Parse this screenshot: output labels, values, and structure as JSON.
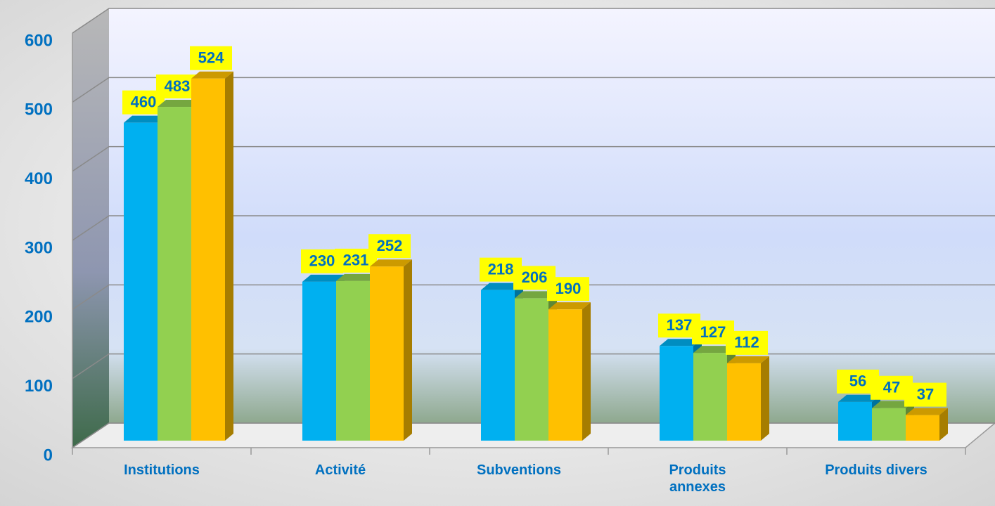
{
  "chart_data": {
    "type": "bar3d",
    "categories": [
      "Institutions",
      "Activité",
      "Subventions",
      "Produits\nannexes",
      "Produits divers"
    ],
    "series": [
      {
        "color": "#00b0f0",
        "values": [
          460,
          230,
          218,
          137,
          56
        ]
      },
      {
        "color": "#92d050",
        "values": [
          483,
          231,
          206,
          127,
          47
        ]
      },
      {
        "color": "#ffc000",
        "values": [
          524,
          252,
          190,
          112,
          37
        ]
      }
    ],
    "ylim": [
      0,
      600
    ],
    "yticks": [
      0,
      100,
      200,
      300,
      400,
      500,
      600
    ],
    "grid": true
  }
}
